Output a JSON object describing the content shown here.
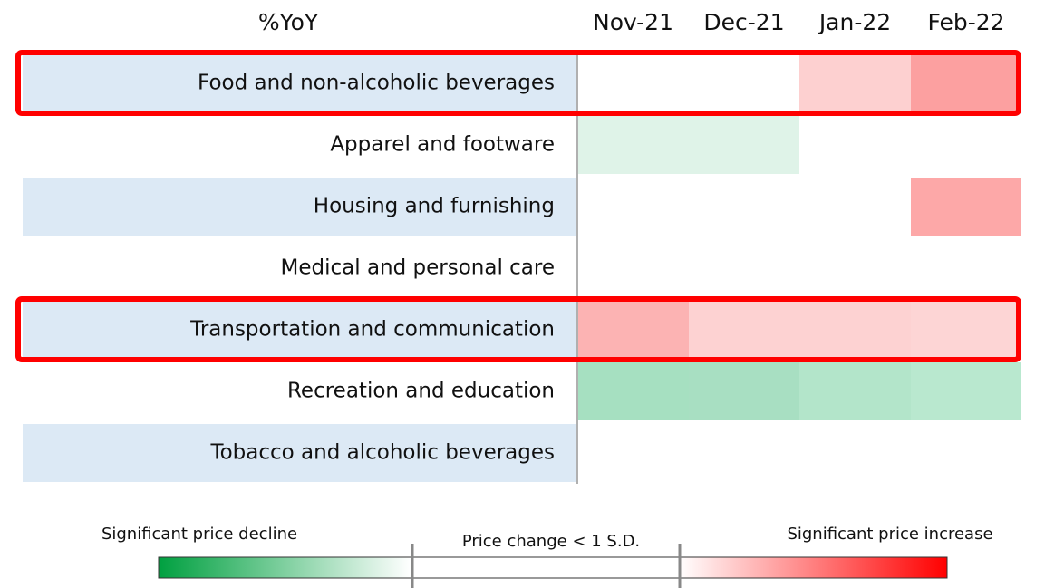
{
  "chart_data": {
    "type": "heatmap",
    "corner_label": "%YoY",
    "columns": [
      "Nov-21",
      "Dec-21",
      "Jan-22",
      "Feb-22"
    ],
    "rows": [
      "Food and non-alcoholic beverages",
      "Apparel and footware",
      "Housing and furnishing",
      "Medical and personal care",
      "Transportation and communication",
      "Recreation and education",
      "Tobacco and alcoholic beverages"
    ],
    "colors": [
      [
        "#ffffff",
        "#ffffff",
        "#fdd0d0",
        "#fca0a0"
      ],
      [
        "#dff3e8",
        "#dff3e8",
        "#ffffff",
        "#ffffff"
      ],
      [
        "#ffffff",
        "#ffffff",
        "#ffffff",
        "#fda8a8"
      ],
      [
        "#ffffff",
        "#ffffff",
        "#ffffff",
        "#ffffff"
      ],
      [
        "#fcb3b3",
        "#fdd2d2",
        "#fdd2d2",
        "#fdd5d5"
      ],
      [
        "#a6e0c1",
        "#a8dfc2",
        "#b3e5ca",
        "#b9e8cf"
      ],
      [
        "#ffffff",
        "#ffffff",
        "#ffffff",
        "#ffffff"
      ]
    ],
    "row_band_color": "#dce9f5",
    "highlight_rows": [
      0,
      4
    ],
    "highlight_color": "#ff0000",
    "legend": {
      "labels": [
        "Significant price decline",
        "Price change < 1 S.D.",
        "Significant price increase"
      ],
      "colors": [
        "#00a040",
        "#ffffff",
        "#ff0000"
      ]
    }
  }
}
